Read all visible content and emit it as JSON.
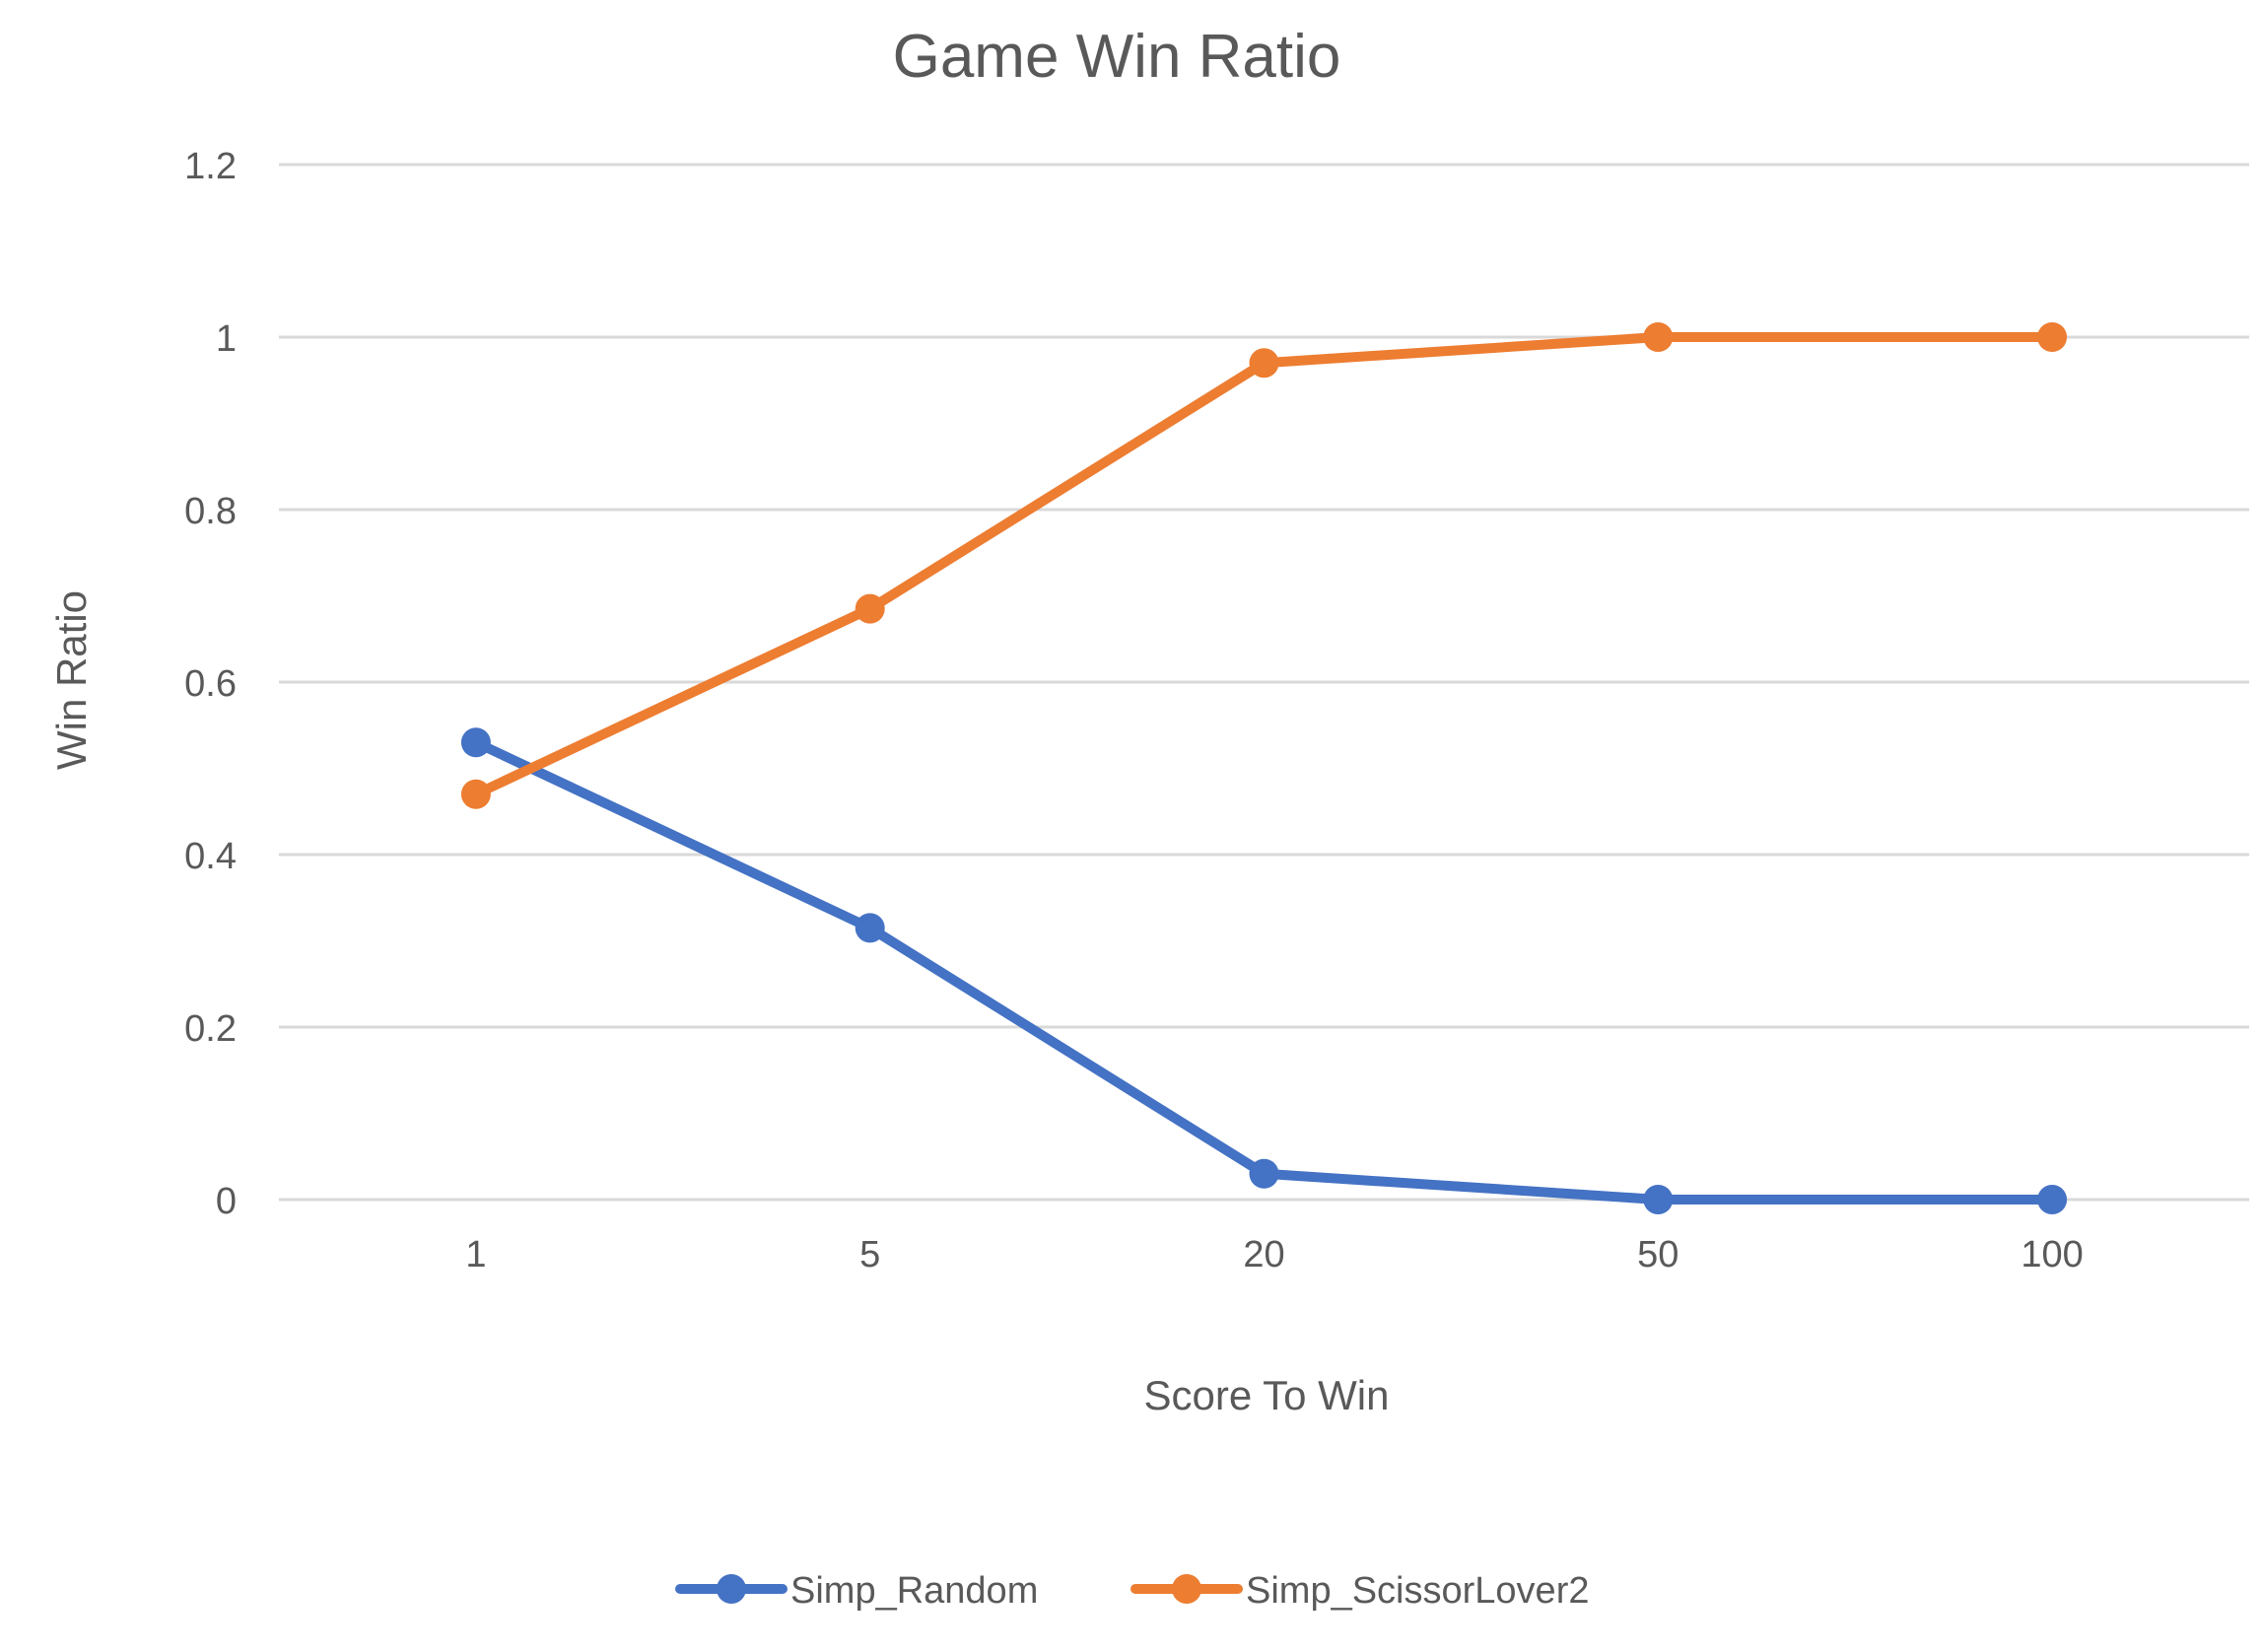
{
  "chart_data": {
    "type": "line",
    "title": "Game Win Ratio",
    "xlabel": "Score To Win",
    "ylabel": "Win Ratio",
    "categories": [
      "1",
      "5",
      "20",
      "50",
      "100"
    ],
    "ylim": [
      0,
      1.2
    ],
    "yticks": [
      "0",
      "0.2",
      "0.4",
      "0.6",
      "0.8",
      "1",
      "1.2"
    ],
    "grid": true,
    "legend_position": "bottom",
    "series": [
      {
        "name": "Simp_Random",
        "color": "#4472C4",
        "values": [
          0.53,
          0.315,
          0.03,
          0,
          0
        ]
      },
      {
        "name": "Simp_ScissorLover2",
        "color": "#ED7D31",
        "values": [
          0.47,
          0.685,
          0.97,
          1,
          1
        ]
      }
    ]
  }
}
